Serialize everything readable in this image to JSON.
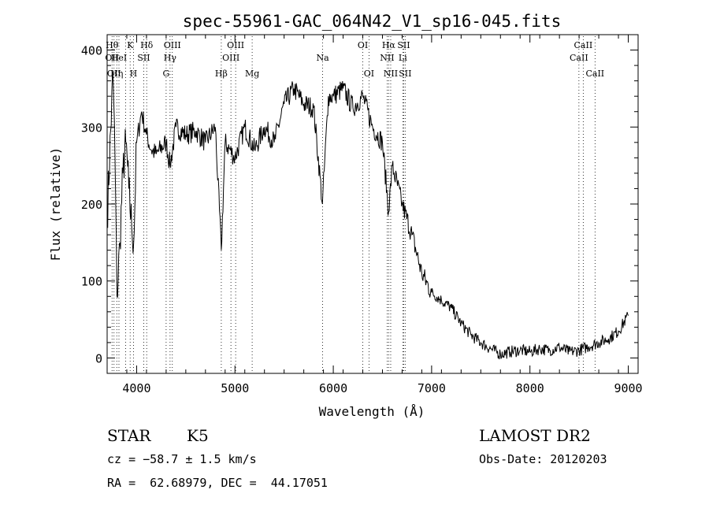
{
  "chart_data": {
    "type": "line",
    "title": "spec-55961-GAC_064N42_V1_sp16-045.fits",
    "xlabel": "Wavelength (Å)",
    "ylabel": "Flux (relative)",
    "xlim": [
      3700,
      9100
    ],
    "ylim": [
      -20,
      420
    ],
    "x_ticks": [
      4000,
      5000,
      6000,
      7000,
      8000,
      9000
    ],
    "y_ticks": [
      0,
      100,
      200,
      300,
      400
    ],
    "x_tick_labels": [
      "4000",
      "5000",
      "6000",
      "7000",
      "8000",
      "9000"
    ],
    "y_tick_labels": [
      "0",
      "100",
      "200",
      "300",
      "400"
    ],
    "grid": false,
    "series": [
      {
        "x": [
          3700,
          3760,
          3780,
          3800,
          3830,
          3860,
          3890,
          3920,
          3950,
          3970,
          4000,
          4050,
          4100,
          4150,
          4200,
          4300,
          4340,
          4400,
          4500,
          4600,
          4700,
          4800,
          4861,
          4900,
          5000,
          5100,
          5200,
          5300,
          5400,
          5500,
          5600,
          5700,
          5800,
          5890,
          5950,
          6000,
          6100,
          6200,
          6300,
          6400,
          6500,
          6563,
          6600,
          6700,
          6800,
          6900,
          7000,
          7100,
          7200,
          7300,
          7400,
          7500,
          7600,
          7700,
          7800,
          7900,
          8000,
          8100,
          8200,
          8300,
          8400,
          8500,
          8600,
          8700,
          8800,
          8900,
          9000
        ],
        "y": [
          180,
          370,
          260,
          80,
          150,
          240,
          280,
          220,
          170,
          150,
          280,
          320,
          290,
          270,
          265,
          280,
          250,
          300,
          290,
          295,
          280,
          300,
          140,
          280,
          260,
          300,
          270,
          300,
          280,
          330,
          350,
          330,
          325,
          200,
          340,
          340,
          350,
          325,
          340,
          300,
          280,
          190,
          250,
          200,
          160,
          110,
          85,
          75,
          65,
          45,
          30,
          20,
          12,
          5,
          8,
          10,
          8,
          12,
          10,
          14,
          8,
          10,
          15,
          20,
          25,
          35,
          55
        ]
      }
    ],
    "lines": [
      {
        "x": 3750,
        "labels": [
          "Hθ",
          "OII"
        ],
        "rows": [
          0,
          1
        ]
      },
      {
        "x": 3770,
        "labels": [
          "OII"
        ],
        "rows": [
          2
        ]
      },
      {
        "x": 3798,
        "labels": [
          "Hη"
        ],
        "rows": [
          2
        ]
      },
      {
        "x": 3820,
        "labels": [
          "HeI"
        ],
        "rows": [
          1
        ]
      },
      {
        "x": 3889,
        "labels": [],
        "rows": []
      },
      {
        "x": 3934,
        "labels": [
          "K"
        ],
        "rows": [
          0
        ]
      },
      {
        "x": 3968,
        "labels": [
          "H"
        ],
        "rows": [
          2
        ]
      },
      {
        "x": 4072,
        "labels": [
          "SII"
        ],
        "rows": [
          1
        ]
      },
      {
        "x": 4102,
        "labels": [
          "Hδ"
        ],
        "rows": [
          0
        ]
      },
      {
        "x": 4300,
        "labels": [
          "G"
        ],
        "rows": [
          2
        ]
      },
      {
        "x": 4340,
        "labels": [
          "Hγ"
        ],
        "rows": [
          1
        ]
      },
      {
        "x": 4363,
        "labels": [
          "OIII"
        ],
        "rows": [
          0
        ]
      },
      {
        "x": 4861,
        "labels": [
          "Hβ"
        ],
        "rows": [
          2
        ]
      },
      {
        "x": 4959,
        "labels": [
          "OIII"
        ],
        "rows": [
          1
        ]
      },
      {
        "x": 5007,
        "labels": [
          "OIII"
        ],
        "rows": [
          0
        ]
      },
      {
        "x": 5175,
        "labels": [
          "Mg"
        ],
        "rows": [
          2
        ]
      },
      {
        "x": 5892,
        "labels": [
          "Na"
        ],
        "rows": [
          1
        ]
      },
      {
        "x": 6300,
        "labels": [
          "OI"
        ],
        "rows": [
          0
        ]
      },
      {
        "x": 6363,
        "labels": [
          "OI"
        ],
        "rows": [
          2
        ]
      },
      {
        "x": 6548,
        "labels": [
          "NII"
        ],
        "rows": [
          1
        ]
      },
      {
        "x": 6563,
        "labels": [
          "Hα"
        ],
        "rows": [
          0
        ]
      },
      {
        "x": 6584,
        "labels": [
          "NII"
        ],
        "rows": [
          2
        ]
      },
      {
        "x": 6707,
        "labels": [
          "Li"
        ],
        "rows": [
          1
        ]
      },
      {
        "x": 6716,
        "labels": [
          "SII"
        ],
        "rows": [
          0
        ]
      },
      {
        "x": 6731,
        "labels": [
          "SII"
        ],
        "rows": [
          2
        ]
      },
      {
        "x": 8498,
        "labels": [
          "CaII"
        ],
        "rows": [
          1
        ]
      },
      {
        "x": 8542,
        "labels": [
          "CaII"
        ],
        "rows": [
          0
        ]
      },
      {
        "x": 8662,
        "labels": [
          "CaII"
        ],
        "rows": [
          2
        ]
      }
    ]
  },
  "info": {
    "object_class": "STAR",
    "subclass": "K5",
    "survey": "LAMOST DR2",
    "velocity": "cz = −58.7 ± 1.5 km/s",
    "obs_date": "Obs-Date: 20120203",
    "coords": "RA =  62.68979, DEC =  44.17051"
  }
}
